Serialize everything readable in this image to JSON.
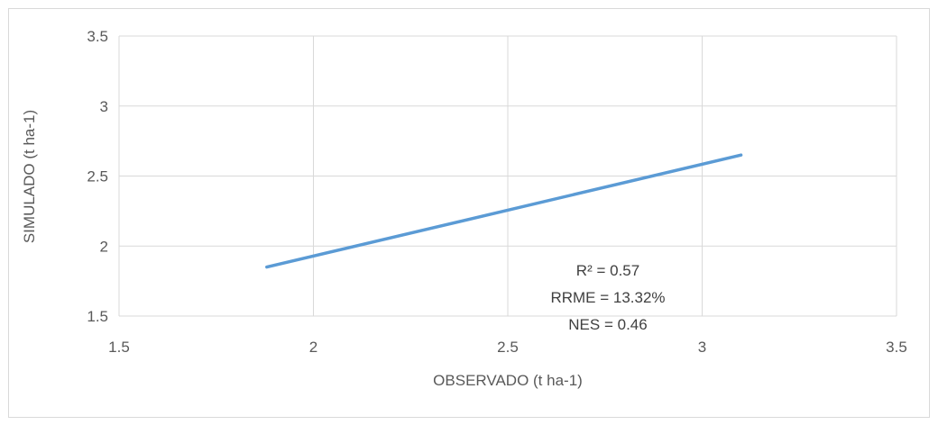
{
  "chart_data": {
    "type": "line",
    "title": "",
    "xlabel": "OBSERVADO (t ha-1)",
    "ylabel": "SIMULADO (t ha-1)",
    "xlim": [
      1.5,
      3.5
    ],
    "ylim": [
      1.5,
      3.5
    ],
    "x_ticks": [
      "1.5",
      "2",
      "2.5",
      "3",
      "3.5"
    ],
    "y_ticks": [
      "1.5",
      "2",
      "2.5",
      "3",
      "3.5"
    ],
    "grid": true,
    "series": [
      {
        "x": [
          1.88,
          3.1
        ],
        "y": [
          1.85,
          2.65
        ],
        "color": "#5b9bd5"
      }
    ],
    "annotations": [
      "R² = 0.57",
      "RRME = 13.32%",
      "NES = 0.46"
    ]
  }
}
